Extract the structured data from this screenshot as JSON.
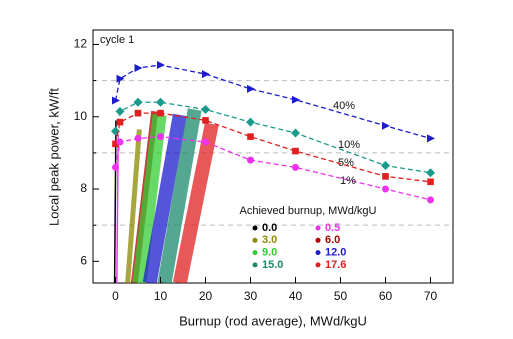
{
  "chart_data": {
    "type": "line",
    "annotation": "cycle 1",
    "x_label": "Burnup (rod average), MWd/kgU",
    "y_label": "Local peak power, kW/ft",
    "xlim": [
      -5,
      75
    ],
    "ylim": [
      5.4,
      12.4
    ],
    "xticks": [
      0,
      10,
      20,
      30,
      40,
      50,
      60,
      70
    ],
    "yticks": [
      6,
      8,
      10,
      12
    ],
    "dashed_hlines": [
      7,
      9,
      11
    ],
    "series": [
      {
        "name": "40%",
        "color": "#1c1ccc",
        "marker": "triangle",
        "x": [
          0,
          1,
          5,
          10,
          20,
          30,
          40,
          60,
          70
        ],
        "values": [
          10.45,
          11.05,
          11.35,
          11.43,
          11.18,
          10.77,
          10.47,
          9.75,
          9.4
        ]
      },
      {
        "name": "10%",
        "color": "#1a9a8a",
        "marker": "diamond",
        "x": [
          0,
          1,
          5,
          10,
          20,
          30,
          40,
          60,
          70
        ],
        "values": [
          9.6,
          10.15,
          10.4,
          10.4,
          10.2,
          9.85,
          9.55,
          8.65,
          8.45
        ]
      },
      {
        "name": "5%",
        "color": "#e02020",
        "marker": "square",
        "x": [
          0,
          1,
          5,
          10,
          20,
          30,
          40,
          60,
          70
        ],
        "values": [
          9.25,
          9.85,
          10.1,
          10.1,
          9.9,
          9.45,
          9.05,
          8.35,
          8.2
        ]
      },
      {
        "name": "1%",
        "color": "#ee33ee",
        "marker": "circle",
        "x": [
          0,
          1,
          5,
          10,
          20,
          30,
          40,
          60,
          70
        ],
        "values": [
          8.6,
          9.3,
          9.4,
          9.45,
          9.3,
          8.8,
          8.6,
          8.0,
          7.7
        ]
      }
    ],
    "legend_title": "Achieved burnup, MWd/kgU",
    "clouds": [
      {
        "name": "0.0",
        "color": "#000000",
        "x": [
          -0.2,
          0.1
        ],
        "values": [
          5.4,
          9.9
        ]
      },
      {
        "name": "0.5",
        "color": "#ee33ee",
        "x": [
          0.3,
          0.6
        ],
        "values": [
          5.4,
          9.5
        ]
      },
      {
        "name": "3.0",
        "color": "#8a8a00",
        "x": [
          2.7,
          5.3
        ],
        "values": [
          5.4,
          9.65
        ]
      },
      {
        "name": "6.0",
        "color": "#b00000",
        "x": [
          4.2,
          8.7
        ],
        "values": [
          5.4,
          10.15
        ]
      },
      {
        "name": "9.0",
        "color": "#33cc33",
        "x": [
          5.3,
          9.8
        ],
        "values": [
          5.4,
          10.05
        ]
      },
      {
        "name": "12.0",
        "color": "#1c1ccc",
        "x": [
          7.6,
          14.3
        ],
        "values": [
          5.4,
          10.05
        ]
      },
      {
        "name": "15.0",
        "color": "#1b8a6b",
        "x": [
          10.9,
          17.6
        ],
        "values": [
          5.4,
          10.2
        ]
      },
      {
        "name": "17.6",
        "color": "#e02020",
        "x": [
          14.3,
          21.4
        ],
        "values": [
          5.4,
          9.8
        ]
      }
    ]
  }
}
